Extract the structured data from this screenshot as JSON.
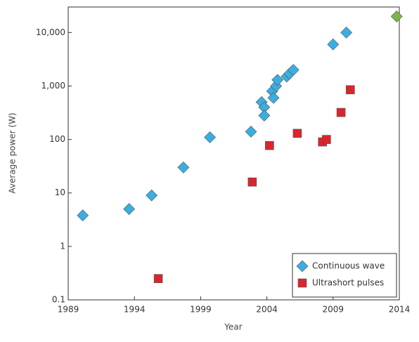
{
  "chart_data": {
    "type": "scatter",
    "xlabel": "Year",
    "ylabel": "Average power (W)",
    "xlim": [
      1989,
      2014
    ],
    "xticks": [
      1989,
      1994,
      1999,
      2004,
      2009,
      2014
    ],
    "ylim": [
      0.1,
      30000
    ],
    "log_y": true,
    "yticks": [
      0.1,
      1,
      10,
      100,
      {
        "value": 1000,
        "label": "1,000"
      },
      {
        "value": 10000,
        "label": "10,000"
      }
    ],
    "legend_position": "lower right",
    "series": [
      {
        "name": "Continuous wave",
        "color": "#3aaee0",
        "marker": "diamond",
        "x": [
          1990.1,
          1993.6,
          1995.3,
          1997.7,
          1999.7,
          2002.8,
          2003.6,
          2003.8,
          2003.8,
          2004.4,
          2004.5,
          2004.7,
          2004.8,
          2005.5,
          2005.7,
          2006.0,
          2009.0,
          2010.0
        ],
        "values": [
          3.8,
          5,
          9,
          30,
          110,
          140,
          500,
          400,
          280,
          800,
          600,
          1000,
          1300,
          1500,
          1700,
          2000,
          6000,
          10000
        ]
      },
      {
        "name": "Ultrashort pulses",
        "color": "#d8262c",
        "marker": "square",
        "x": [
          1995.8,
          2002.9,
          2004.2,
          2006.3,
          2008.2,
          2008.5,
          2009.6,
          2010.3
        ],
        "values": [
          0.25,
          16,
          77,
          130,
          90,
          100,
          320,
          850
        ]
      },
      {
        "color": "#7ab648",
        "marker": "diamond",
        "x": [
          2013.8
        ],
        "values": [
          20000
        ]
      }
    ]
  }
}
